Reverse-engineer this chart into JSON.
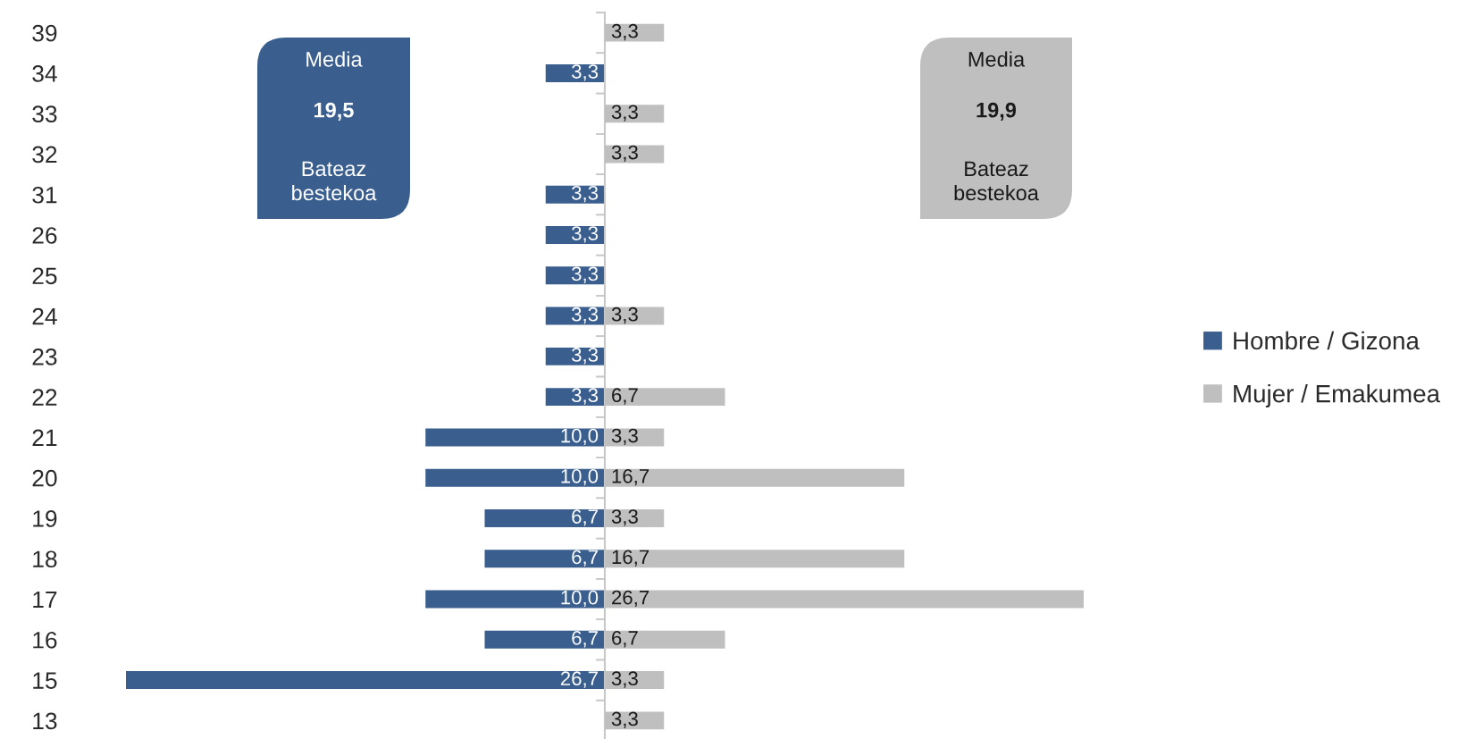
{
  "chart_data": [
    {
      "type": "bar",
      "orientation": "horizontal",
      "xlim": [
        26.7,
        0
      ],
      "categories": [
        "39",
        "34",
        "33",
        "32",
        "31",
        "26",
        "25",
        "24",
        "23",
        "22",
        "21",
        "20",
        "19",
        "18",
        "17",
        "16",
        "15",
        "13"
      ],
      "series": [
        {
          "name": "Hombre / Gizona",
          "color": "#3a5f8f",
          "values": [
            null,
            3.3,
            null,
            null,
            3.3,
            3.3,
            3.3,
            3.3,
            3.3,
            3.3,
            10.0,
            10.0,
            6.7,
            6.7,
            10.0,
            6.7,
            26.7,
            null
          ],
          "value_labels": [
            null,
            "3,3",
            null,
            null,
            "3,3",
            "3,3",
            "3,3",
            "3,3",
            "3,3",
            "3,3",
            "10,0",
            "10,0",
            "6,7",
            "6,7",
            "10,0",
            "6,7",
            "26,7",
            null
          ]
        }
      ],
      "annotations": [
        "Media",
        "19,5",
        "Bateaz\nbestekoa"
      ],
      "legend": "right",
      "tick_labels": "y"
    },
    {
      "type": "bar",
      "orientation": "horizontal",
      "xlim": [
        0,
        26.7
      ],
      "categories": [
        "39",
        "34",
        "33",
        "32",
        "31",
        "26",
        "25",
        "24",
        "23",
        "22",
        "21",
        "20",
        "19",
        "18",
        "17",
        "16",
        "15",
        "13"
      ],
      "series": [
        {
          "name": "Mujer / Emakumea",
          "color": "#bfbfbf",
          "values": [
            3.3,
            null,
            3.3,
            3.3,
            null,
            null,
            null,
            3.3,
            null,
            6.7,
            3.3,
            16.7,
            3.3,
            16.7,
            26.7,
            6.7,
            3.3,
            3.3
          ],
          "value_labels": [
            "3,3",
            null,
            "3,3",
            "3,3",
            null,
            null,
            null,
            "3,3",
            null,
            "6,7",
            "3,3",
            "16,7",
            "3,3",
            "16,7",
            "26,7",
            "6,7",
            "3,3",
            "3,3"
          ]
        }
      ],
      "annotations": [
        "Media",
        "19,9",
        "Bateaz\nbestekoa"
      ],
      "legend": "right",
      "tick_labels": false
    }
  ]
}
